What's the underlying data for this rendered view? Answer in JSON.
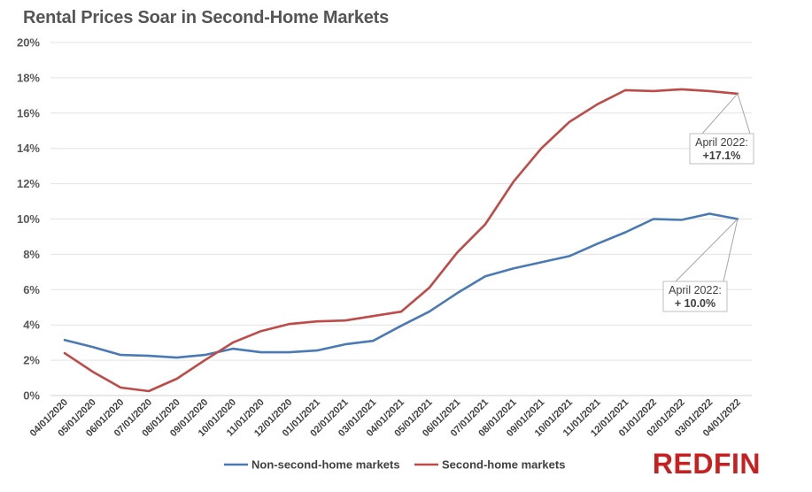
{
  "chart_data": {
    "type": "line",
    "title": "Rental Prices Soar in Second-Home Markets",
    "xlabel": "",
    "ylabel": "",
    "categories": [
      "04/01/2020",
      "05/01/2020",
      "06/01/2020",
      "07/01/2020",
      "08/01/2020",
      "09/01/2020",
      "10/01/2020",
      "11/01/2020",
      "12/01/2020",
      "01/01/2021",
      "02/01/2021",
      "03/01/2021",
      "04/01/2021",
      "05/01/2021",
      "06/01/2021",
      "07/01/2021",
      "08/01/2021",
      "09/01/2021",
      "10/01/2021",
      "11/01/2021",
      "12/01/2021",
      "01/01/2022",
      "02/01/2022",
      "03/01/2022",
      "04/01/2022"
    ],
    "y_ticks": [
      "0%",
      "2%",
      "4%",
      "6%",
      "8%",
      "10%",
      "12%",
      "14%",
      "16%",
      "18%",
      "20%"
    ],
    "ylim": [
      0,
      20
    ],
    "grid": "horizontal",
    "legend_position": "bottom",
    "series": [
      {
        "name": "Non-second-home markets",
        "color": "#4a7ab5",
        "values": [
          3.15,
          2.75,
          2.3,
          2.25,
          2.15,
          2.3,
          2.65,
          2.45,
          2.45,
          2.55,
          2.9,
          3.1,
          3.95,
          4.75,
          5.8,
          6.75,
          7.2,
          7.55,
          7.9,
          8.6,
          9.25,
          10.0,
          9.95,
          10.3,
          10.0
        ]
      },
      {
        "name": "Second-home markets",
        "color": "#be4b48",
        "values": [
          2.4,
          1.35,
          0.45,
          0.25,
          0.95,
          2.0,
          3.0,
          3.65,
          4.05,
          4.2,
          4.25,
          4.5,
          4.75,
          6.1,
          8.1,
          9.7,
          12.1,
          14.0,
          15.5,
          16.5,
          17.3,
          17.25,
          17.35,
          17.25,
          17.1
        ]
      }
    ],
    "annotations": [
      {
        "series": "Second-home markets",
        "line1": "April 2022:",
        "line2": "+17.1%"
      },
      {
        "series": "Non-second-home markets",
        "line1": "April 2022:",
        "line2": "+ 10.0%"
      }
    ]
  },
  "logo": "REDFIN"
}
